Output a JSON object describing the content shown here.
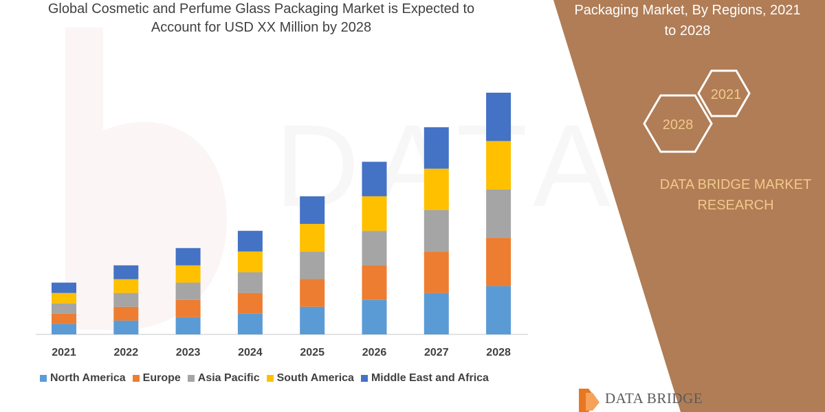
{
  "chart_data": {
    "type": "bar",
    "stacked": true,
    "title": "Global Cosmetic and Perfume Glass Packaging Market is Expected to Account for USD XX Million by 2028",
    "xlabel": "",
    "ylabel": "",
    "categories": [
      "2021",
      "2022",
      "2023",
      "2024",
      "2025",
      "2026",
      "2027",
      "2028"
    ],
    "series": [
      {
        "name": "North America",
        "color": "#5b9bd5",
        "values": [
          15,
          20,
          25,
          30,
          40,
          50,
          60,
          70
        ]
      },
      {
        "name": "Europe",
        "color": "#ed7d31",
        "values": [
          15,
          20,
          25,
          30,
          40,
          50,
          60,
          70
        ]
      },
      {
        "name": "Asia Pacific",
        "color": "#a5a5a5",
        "values": [
          15,
          20,
          25,
          30,
          40,
          50,
          60,
          70
        ]
      },
      {
        "name": "South America",
        "color": "#ffc000",
        "values": [
          15,
          20,
          25,
          30,
          40,
          50,
          60,
          70
        ]
      },
      {
        "name": "Middle East and Africa",
        "color": "#4472c4",
        "values": [
          15,
          20,
          25,
          30,
          40,
          50,
          60,
          70
        ]
      }
    ],
    "ylim": [
      0,
      350
    ],
    "grid": false,
    "legend": "bottom"
  },
  "side_panel": {
    "title": "Packaging Market, By Regions, 2021 to 2028",
    "hex_start_label": "2021",
    "hex_end_label": "2028",
    "brand": "DATA BRIDGE MARKET RESEARCH",
    "background_color": "#b07d56",
    "accent_color": "#f2c98a"
  },
  "footer": {
    "logo_text": "DATA BRIDGE"
  }
}
